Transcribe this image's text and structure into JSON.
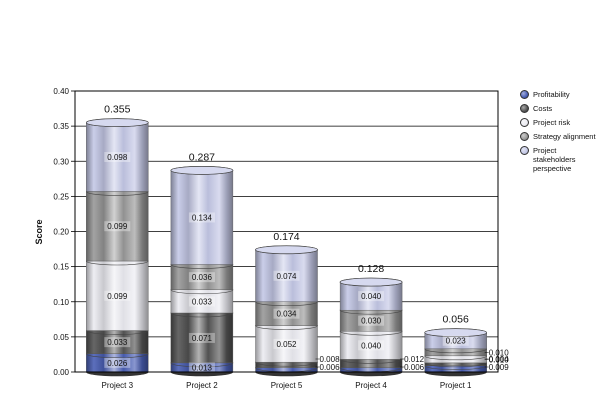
{
  "chart_data": {
    "type": "bar",
    "stacked": true,
    "title": "",
    "xlabel": "",
    "ylabel": "Score",
    "ylim": [
      0,
      0.4
    ],
    "yticks": [
      "0.00",
      "0.05",
      "0.10",
      "0.15",
      "0.20",
      "0.25",
      "0.30",
      "0.35",
      "0.40"
    ],
    "grid": true,
    "legend_position": "right",
    "categories": [
      "Project 3",
      "Project 2",
      "Project 5",
      "Project 4",
      "Project 1"
    ],
    "totals": [
      0.355,
      0.287,
      0.174,
      0.128,
      0.056
    ],
    "total_labels": [
      "0.355",
      "0.287",
      "0.174",
      "0.128",
      "0.056"
    ],
    "series": [
      {
        "name": "Profitability",
        "color": "#4a5fb5",
        "values": [
          0.026,
          0.013,
          0.006,
          0.006,
          0.009
        ],
        "labels": [
          "0.026",
          "0.013",
          "0.006",
          "0.006",
          "0.009"
        ]
      },
      {
        "name": "Costs",
        "color": "#555555",
        "values": [
          0.033,
          0.071,
          0.008,
          0.012,
          0.004
        ],
        "labels": [
          "0.033",
          "0.071",
          "0.008",
          "0.012",
          "0.004"
        ]
      },
      {
        "name": "Project risk",
        "color": "#ececf2",
        "values": [
          0.099,
          0.033,
          0.052,
          0.04,
          0.01
        ],
        "labels": [
          "0.099",
          "0.033",
          "0.052",
          "0.040",
          "0.010"
        ]
      },
      {
        "name": "Strategy alignment",
        "color": "#999999",
        "values": [
          0.099,
          0.036,
          0.034,
          0.03,
          0.01
        ],
        "labels": [
          "0.099",
          "0.036",
          "0.034",
          "0.030",
          "0.010"
        ]
      },
      {
        "name": "Project stakeholders perspective",
        "color": "#c4c8e6",
        "values": [
          0.098,
          0.134,
          0.074,
          0.04,
          0.023
        ],
        "labels": [
          "0.098",
          "0.134",
          "0.074",
          "0.040",
          "0.023"
        ]
      }
    ]
  }
}
